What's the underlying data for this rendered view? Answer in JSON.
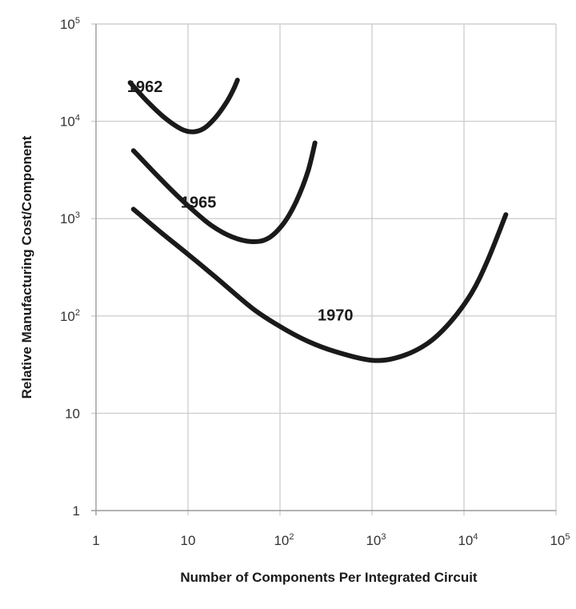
{
  "chart_data": {
    "type": "line",
    "title": "",
    "xlabel": "Number of Components Per Integrated Circuit",
    "ylabel": "Relative Manufacturing Cost/Component",
    "xscale": "log",
    "yscale": "log",
    "xlim": [
      1,
      100000
    ],
    "ylim": [
      1,
      100000
    ],
    "grid": true,
    "legend": "none (series labelled directly on curves)",
    "x_ticks": [
      {
        "value": 1,
        "base": "1",
        "exp": ""
      },
      {
        "value": 10,
        "base": "10",
        "exp": ""
      },
      {
        "value": 100,
        "base": "10",
        "exp": "2"
      },
      {
        "value": 1000,
        "base": "10",
        "exp": "3"
      },
      {
        "value": 10000,
        "base": "10",
        "exp": "4"
      },
      {
        "value": 100000,
        "base": "10",
        "exp": "5"
      }
    ],
    "y_ticks": [
      {
        "value": 1,
        "base": "1",
        "exp": ""
      },
      {
        "value": 10,
        "base": "10",
        "exp": ""
      },
      {
        "value": 100,
        "base": "10",
        "exp": "2"
      },
      {
        "value": 1000,
        "base": "10",
        "exp": "3"
      },
      {
        "value": 10000,
        "base": "10",
        "exp": "4"
      },
      {
        "value": 100000,
        "base": "10",
        "exp": "5"
      }
    ],
    "series": [
      {
        "name": "1962",
        "label_at": [
          3.4,
          20000
        ],
        "x": [
          2.35,
          3.5,
          5.5,
          8.5,
          11.5,
          15,
          20,
          26,
          31,
          34.5
        ],
        "y": [
          25000,
          16500,
          11000,
          8300,
          7800,
          8500,
          11000,
          15500,
          21000,
          26500
        ]
      },
      {
        "name": "1965",
        "label_at": [
          13,
          1300
        ],
        "x": [
          2.55,
          4,
          6.5,
          11,
          18,
          30,
          50,
          75,
          110,
          150,
          200,
          240
        ],
        "y": [
          5000,
          3200,
          2000,
          1250,
          850,
          650,
          580,
          630,
          900,
          1500,
          3000,
          6000
        ]
      },
      {
        "name": "1970",
        "label_at": [
          400,
          90
        ],
        "x": [
          2.55,
          5,
          10,
          20,
          50,
          100,
          200,
          400,
          1000,
          2000,
          4000,
          7000,
          12000,
          18000,
          28500
        ],
        "y": [
          1250,
          730,
          430,
          250,
          120,
          78,
          55,
          43,
          35,
          38,
          52,
          85,
          170,
          370,
          1100
        ]
      }
    ]
  }
}
